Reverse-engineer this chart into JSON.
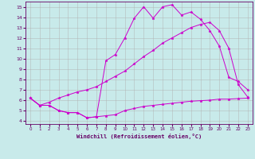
{
  "xlabel": "Windchill (Refroidissement éolien,°C)",
  "background_color": "#c8eaea",
  "grid_color": "#b0b0b0",
  "line_color": "#cc00cc",
  "xlim": [
    -0.5,
    23.5
  ],
  "ylim": [
    3.7,
    15.5
  ],
  "xticks": [
    0,
    1,
    2,
    3,
    4,
    5,
    6,
    7,
    8,
    9,
    10,
    11,
    12,
    13,
    14,
    15,
    16,
    17,
    18,
    19,
    20,
    21,
    22,
    23
  ],
  "yticks": [
    4,
    5,
    6,
    7,
    8,
    9,
    10,
    11,
    12,
    13,
    14,
    15
  ],
  "line1_x": [
    0,
    1,
    2,
    3,
    4,
    5,
    6,
    7,
    8,
    9,
    10,
    11,
    12,
    13,
    14,
    15,
    16,
    17,
    18,
    19,
    20,
    21,
    22,
    23
  ],
  "line1_y": [
    6.2,
    5.5,
    5.5,
    5.0,
    4.8,
    4.8,
    4.3,
    4.4,
    4.5,
    4.6,
    5.0,
    5.2,
    5.4,
    5.5,
    5.6,
    5.7,
    5.8,
    5.9,
    5.95,
    6.0,
    6.1,
    6.1,
    6.15,
    6.2
  ],
  "line2_x": [
    0,
    1,
    2,
    3,
    4,
    5,
    6,
    7,
    8,
    9,
    10,
    11,
    12,
    13,
    14,
    15,
    16,
    17,
    18,
    19,
    20,
    21,
    22,
    23
  ],
  "line2_y": [
    6.2,
    5.5,
    5.8,
    6.2,
    6.5,
    6.8,
    7.0,
    7.3,
    7.8,
    8.3,
    8.8,
    9.5,
    10.2,
    10.8,
    11.5,
    12.0,
    12.5,
    13.0,
    13.3,
    13.5,
    12.7,
    11.0,
    7.5,
    6.3
  ],
  "line3_x": [
    0,
    1,
    2,
    3,
    4,
    5,
    6,
    7,
    8,
    9,
    10,
    11,
    12,
    13,
    14,
    15,
    16,
    17,
    18,
    19,
    20,
    21,
    22,
    23
  ],
  "line3_y": [
    6.2,
    5.5,
    5.5,
    5.0,
    4.8,
    4.8,
    4.3,
    4.4,
    9.8,
    10.4,
    12.0,
    13.9,
    15.0,
    13.9,
    15.0,
    15.2,
    14.2,
    14.5,
    13.8,
    12.7,
    11.2,
    8.2,
    7.8,
    7.0
  ]
}
